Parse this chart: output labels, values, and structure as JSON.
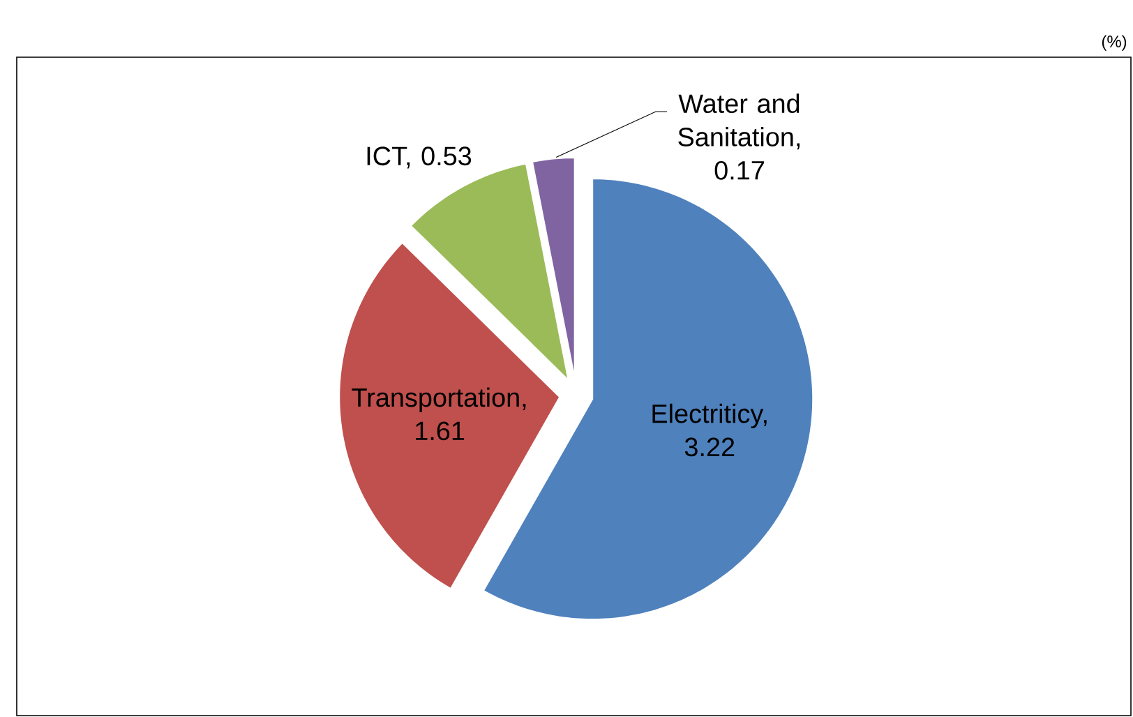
{
  "chart_data": {
    "type": "pie",
    "categories": [
      null,
      null,
      null,
      null
    ],
    "value_labels": [
      "Electriticy, 3.22",
      "Transportation, 1.61",
      "ICT, 0.53",
      "Water and Sanitation, 0.17"
    ],
    "values": [
      3.22,
      1.61,
      0.53,
      0.17
    ],
    "colors": [
      "#4f81bd",
      "#c0504d",
      "#9bbb59",
      "#8064a2"
    ],
    "data_labels": true,
    "annotations": [
      "(%)"
    ]
  }
}
